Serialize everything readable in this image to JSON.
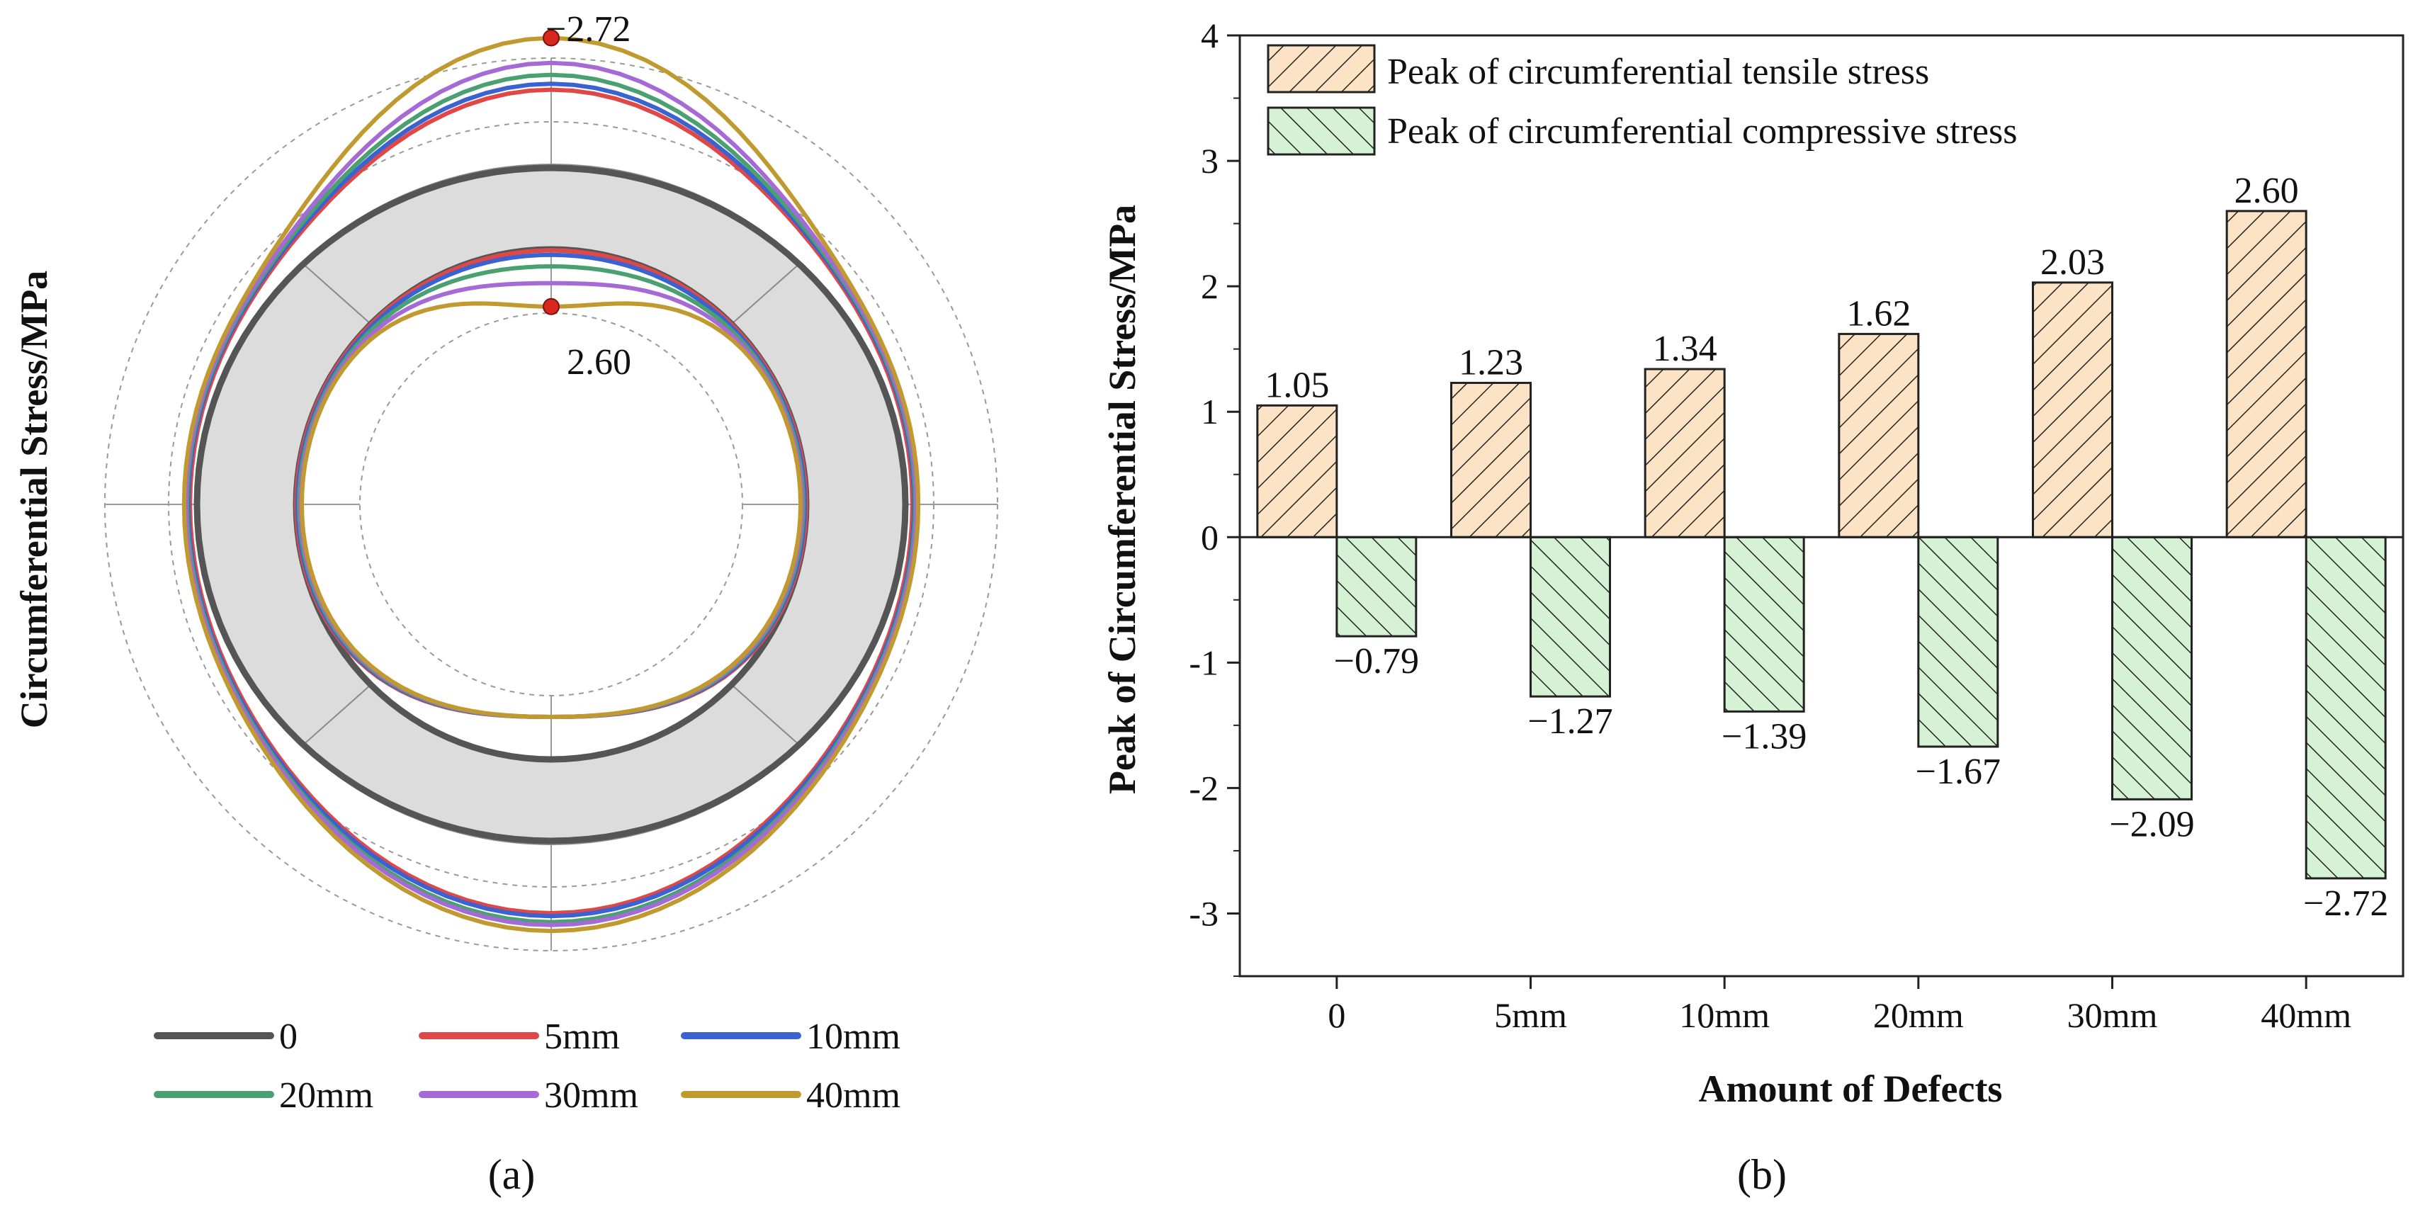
{
  "figure": {
    "panel_a_label": "(a)",
    "panel_b_label": "(b)"
  },
  "chart_data": [
    {
      "type": "polar",
      "panel": "a",
      "ylabel": "Circumferential Stress/MPa",
      "annotations": [
        {
          "text": "−2.72",
          "angle_deg": 90,
          "value": -2.72
        },
        {
          "text": "2.60",
          "angle_deg": 90,
          "value": 2.6
        }
      ],
      "legend": {
        "position": "bottom",
        "entries": [
          {
            "label": "0",
            "color": "#555555"
          },
          {
            "label": "5mm",
            "color": "#e04848"
          },
          {
            "label": "10mm",
            "color": "#3a62d0"
          },
          {
            "label": "20mm",
            "color": "#4aa070"
          },
          {
            "label": "30mm",
            "color": "#a56ad6"
          },
          {
            "label": "40mm",
            "color": "#c09a2e"
          }
        ]
      },
      "series": [
        {
          "name": "0",
          "color": "#555555",
          "outer_top": -1.15,
          "outer_side": -1.1,
          "outer_bottom": -1.1,
          "inner_top": 1.05,
          "inner_side": 0.79
        },
        {
          "name": "5mm",
          "color": "#e04848",
          "outer_top": -1.85,
          "outer_side": -0.95,
          "outer_bottom": -1.75,
          "inner_top": 1.23,
          "inner_side": 1.0
        },
        {
          "name": "10mm",
          "color": "#3a62d0",
          "outer_top": -1.95,
          "outer_side": -0.98,
          "outer_bottom": -1.8,
          "inner_top": 1.34,
          "inner_side": 1.05
        },
        {
          "name": "20mm",
          "color": "#4aa070",
          "outer_top": -2.1,
          "outer_side": -1.0,
          "outer_bottom": -1.9,
          "inner_top": 1.62,
          "inner_side": 1.1
        },
        {
          "name": "30mm",
          "color": "#a56ad6",
          "outer_top": -2.3,
          "outer_side": -1.02,
          "outer_bottom": -1.95,
          "inner_top": 2.03,
          "inner_side": 1.15
        },
        {
          "name": "40mm",
          "color": "#c09a2e",
          "outer_top": -2.72,
          "outer_side": -1.05,
          "outer_bottom": -2.05,
          "inner_top": 2.6,
          "inner_side": 1.2
        }
      ]
    },
    {
      "type": "bar",
      "panel": "b",
      "title": "",
      "xlabel": "Amount of Defects",
      "ylabel": "Peak of Circumferential Stress/MPa",
      "ylim": [
        -3.5,
        4
      ],
      "yticks": [
        "4",
        "3",
        "2",
        "1",
        "0",
        "-1",
        "-2",
        "-3"
      ],
      "ytick_values": [
        4,
        3,
        2,
        1,
        0,
        -1,
        -2,
        -3
      ],
      "categories": [
        "0",
        "5mm",
        "10mm",
        "20mm",
        "30mm",
        "40mm"
      ],
      "legend_position": "top-left",
      "series": [
        {
          "name": "Peak of circumferential tensile stress",
          "color": "#fde3c6",
          "hatch": "forward",
          "values": [
            1.05,
            1.23,
            1.34,
            1.62,
            2.03,
            2.6
          ],
          "labels": [
            "1.05",
            "1.23",
            "1.34",
            "1.62",
            "2.03",
            "2.60"
          ]
        },
        {
          "name": "Peak of circumferential compressive stress",
          "color": "#d6f2d4",
          "hatch": "backward",
          "values": [
            -0.79,
            -1.27,
            -1.39,
            -1.67,
            -2.09,
            -2.72
          ],
          "labels": [
            "−0.79",
            "−1.27",
            "−1.39",
            "−1.67",
            "−2.09",
            "−2.72"
          ]
        }
      ]
    }
  ]
}
